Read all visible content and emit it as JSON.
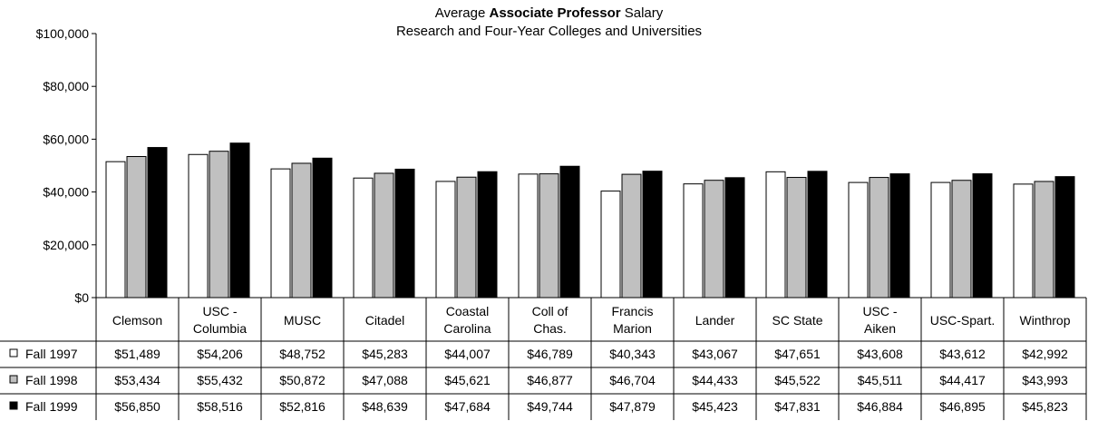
{
  "chart_data": {
    "type": "bar",
    "title_prefix": "Average",
    "title_bold": "Associate Professor",
    "title_suffix": "Salary",
    "subtitle": "Research and Four-Year Colleges and Universities",
    "xlabel": "",
    "ylabel": "",
    "ylim": [
      0,
      100000
    ],
    "yticks": [
      "$0",
      "$20,000",
      "$40,000",
      "$60,000",
      "$80,000",
      "$100,000"
    ],
    "ytick_values": [
      0,
      20000,
      40000,
      60000,
      80000,
      100000
    ],
    "grid": false,
    "legend": "left of data table",
    "categories": [
      [
        "Clemson"
      ],
      [
        "USC -",
        "Columbia"
      ],
      [
        "MUSC"
      ],
      [
        "Citadel"
      ],
      [
        "Coastal",
        "Carolina"
      ],
      [
        "Coll of",
        "Chas."
      ],
      [
        "Francis",
        "Marion"
      ],
      [
        "Lander"
      ],
      [
        "SC State"
      ],
      [
        "USC -",
        "Aiken"
      ],
      [
        "USC-Spart."
      ],
      [
        "Winthrop"
      ]
    ],
    "series": [
      {
        "name": "Fall 1997",
        "color": "#ffffff",
        "values": [
          51489,
          54206,
          48752,
          45283,
          44007,
          46789,
          40343,
          43067,
          47651,
          43608,
          43612,
          42992
        ],
        "labels": [
          "$51,489",
          "$54,206",
          "$48,752",
          "$45,283",
          "$44,007",
          "$46,789",
          "$40,343",
          "$43,067",
          "$47,651",
          "$43,608",
          "$43,612",
          "$42,992"
        ]
      },
      {
        "name": "Fall 1998",
        "color": "#c0c0c0",
        "values": [
          53434,
          55432,
          50872,
          47088,
          45621,
          46877,
          46704,
          44433,
          45522,
          45511,
          44417,
          43993
        ],
        "labels": [
          "$53,434",
          "$55,432",
          "$50,872",
          "$47,088",
          "$45,621",
          "$46,877",
          "$46,704",
          "$44,433",
          "$45,522",
          "$45,511",
          "$44,417",
          "$43,993"
        ]
      },
      {
        "name": "Fall 1999",
        "color": "#000000",
        "values": [
          56850,
          58516,
          52816,
          48639,
          47684,
          49744,
          47879,
          45423,
          47831,
          46884,
          46895,
          45823
        ],
        "labels": [
          "$56,850",
          "$58,516",
          "$52,816",
          "$48,639",
          "$47,684",
          "$49,744",
          "$47,879",
          "$45,423",
          "$47,831",
          "$46,884",
          "$46,895",
          "$45,823"
        ]
      }
    ]
  }
}
